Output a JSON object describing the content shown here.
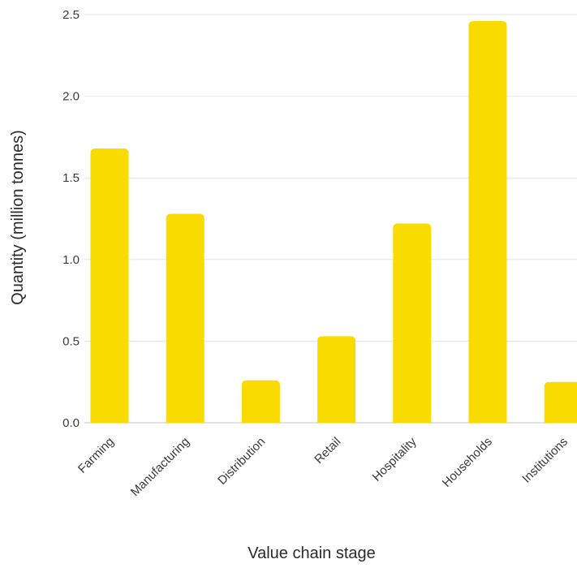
{
  "chart_data": {
    "type": "bar",
    "title": "",
    "xlabel": "Value chain stage",
    "ylabel": "Quantity (million tonnes)",
    "categories": [
      "Farming",
      "Manufacturing",
      "Distribution",
      "Retail",
      "Hospitality",
      "Households",
      "Institutions"
    ],
    "values": [
      1.68,
      1.28,
      0.26,
      0.53,
      1.22,
      2.46,
      0.25
    ],
    "ylim": [
      0,
      2.5
    ],
    "yticks": [
      "0.0",
      "0.5",
      "1.0",
      "1.5",
      "2.0",
      "2.5"
    ],
    "grid": true,
    "bar_color": "#F9DB00"
  }
}
